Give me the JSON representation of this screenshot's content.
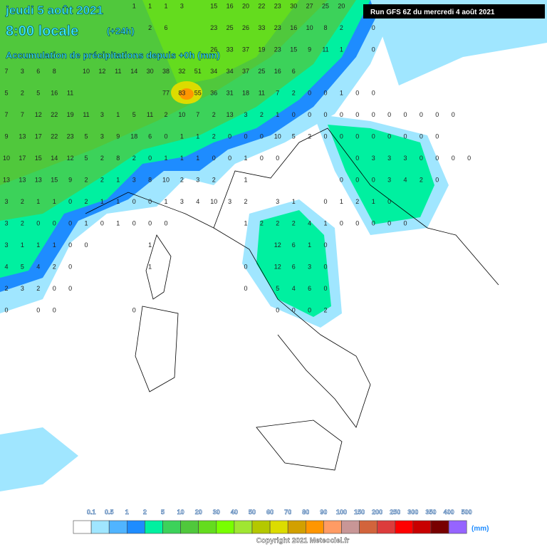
{
  "header": {
    "date": "jeudi 5 août 2021",
    "time": "8:00 locale",
    "lead": "(+24h)",
    "subtitle": "Accumulation de précipitations depuis +0h (mm)",
    "run": "Run GFS 6Z du mercredi 4 août 2021"
  },
  "grid": {
    "rows": [
      [
        null,
        null,
        null,
        null,
        null,
        null,
        null,
        null,
        1,
        1,
        1,
        3,
        null,
        15,
        16,
        20,
        22,
        23,
        30,
        27,
        25,
        20
      ],
      [
        null,
        null,
        null,
        null,
        null,
        null,
        null,
        null,
        null,
        2,
        6,
        null,
        null,
        23,
        25,
        26,
        33,
        23,
        16,
        10,
        8,
        2,
        null,
        0
      ],
      [
        null,
        null,
        null,
        null,
        null,
        null,
        null,
        null,
        null,
        null,
        null,
        null,
        null,
        26,
        33,
        37,
        19,
        23,
        15,
        9,
        11,
        1,
        null,
        0
      ],
      [
        7,
        3,
        6,
        8,
        null,
        10,
        12,
        11,
        14,
        30,
        38,
        32,
        51,
        34,
        34,
        37,
        25,
        16,
        6
      ],
      [
        5,
        2,
        5,
        16,
        11,
        null,
        null,
        null,
        null,
        null,
        77,
        83,
        55,
        36,
        31,
        18,
        11,
        7,
        2,
        0,
        0,
        1,
        0,
        0
      ],
      [
        7,
        7,
        12,
        22,
        19,
        11,
        3,
        1,
        5,
        11,
        2,
        10,
        7,
        2,
        13,
        3,
        2,
        1,
        0,
        0,
        0,
        0,
        0,
        0,
        0,
        0,
        0,
        0,
        0
      ],
      [
        9,
        13,
        17,
        22,
        23,
        5,
        3,
        9,
        18,
        6,
        0,
        1,
        1,
        2,
        0,
        0,
        0,
        10,
        5,
        2,
        0,
        0,
        0,
        0,
        0,
        0,
        0,
        0
      ],
      [
        10,
        17,
        15,
        14,
        12,
        5,
        2,
        8,
        2,
        0,
        1,
        1,
        1,
        0,
        0,
        1,
        0,
        0,
        null,
        null,
        null,
        null,
        0,
        3,
        3,
        3,
        0,
        0,
        0,
        0
      ],
      [
        13,
        13,
        13,
        15,
        9,
        2,
        2,
        1,
        3,
        8,
        10,
        2,
        3,
        2,
        null,
        1,
        null,
        null,
        null,
        null,
        null,
        0,
        0,
        0,
        3,
        4,
        2,
        0
      ],
      [
        3,
        2,
        1,
        1,
        0,
        2,
        1,
        1,
        0,
        0,
        1,
        3,
        4,
        10,
        3,
        2,
        null,
        3,
        1,
        null,
        0,
        1,
        2,
        1,
        0
      ],
      [
        3,
        2,
        0,
        0,
        0,
        1,
        0,
        1,
        0,
        0,
        0,
        null,
        null,
        null,
        null,
        1,
        2,
        2,
        2,
        4,
        1,
        0,
        0,
        0,
        0,
        0
      ],
      [
        3,
        1,
        1,
        1,
        0,
        0,
        null,
        null,
        null,
        1,
        null,
        null,
        null,
        null,
        null,
        null,
        null,
        12,
        6,
        1,
        0
      ],
      [
        4,
        5,
        4,
        2,
        0,
        null,
        null,
        null,
        null,
        1,
        null,
        null,
        null,
        null,
        null,
        0,
        null,
        12,
        6,
        3,
        0
      ],
      [
        2,
        3,
        2,
        0,
        0,
        null,
        null,
        null,
        null,
        null,
        null,
        null,
        null,
        null,
        null,
        0,
        null,
        5,
        4,
        6,
        0
      ],
      [
        0,
        null,
        0,
        0,
        null,
        null,
        null,
        null,
        0,
        null,
        null,
        null,
        null,
        null,
        null,
        null,
        null,
        0,
        0,
        0,
        2
      ]
    ]
  },
  "legend": {
    "labels": [
      0.1,
      0.5,
      1,
      2,
      5,
      10,
      20,
      30,
      40,
      50,
      60,
      70,
      80,
      90,
      100,
      150,
      200,
      250,
      300,
      350,
      400,
      500
    ],
    "colors": [
      "#ffffff",
      "#a0e6ff",
      "#50b4ff",
      "#1e8cff",
      "#00f0a0",
      "#3cd25a",
      "#50c83c",
      "#64dc1e",
      "#78ff00",
      "#a0e632",
      "#b4c800",
      "#dcdc00",
      "#d2a000",
      "#ff9600",
      "#ff9b64",
      "#c89696",
      "#d2643c",
      "#dc3c3c",
      "#ff0000",
      "#c80000",
      "#780000",
      "#9664ff"
    ],
    "unit": "(mm)"
  },
  "footer": {
    "copyright": "Copyright 2021 Meteociel.fr"
  }
}
